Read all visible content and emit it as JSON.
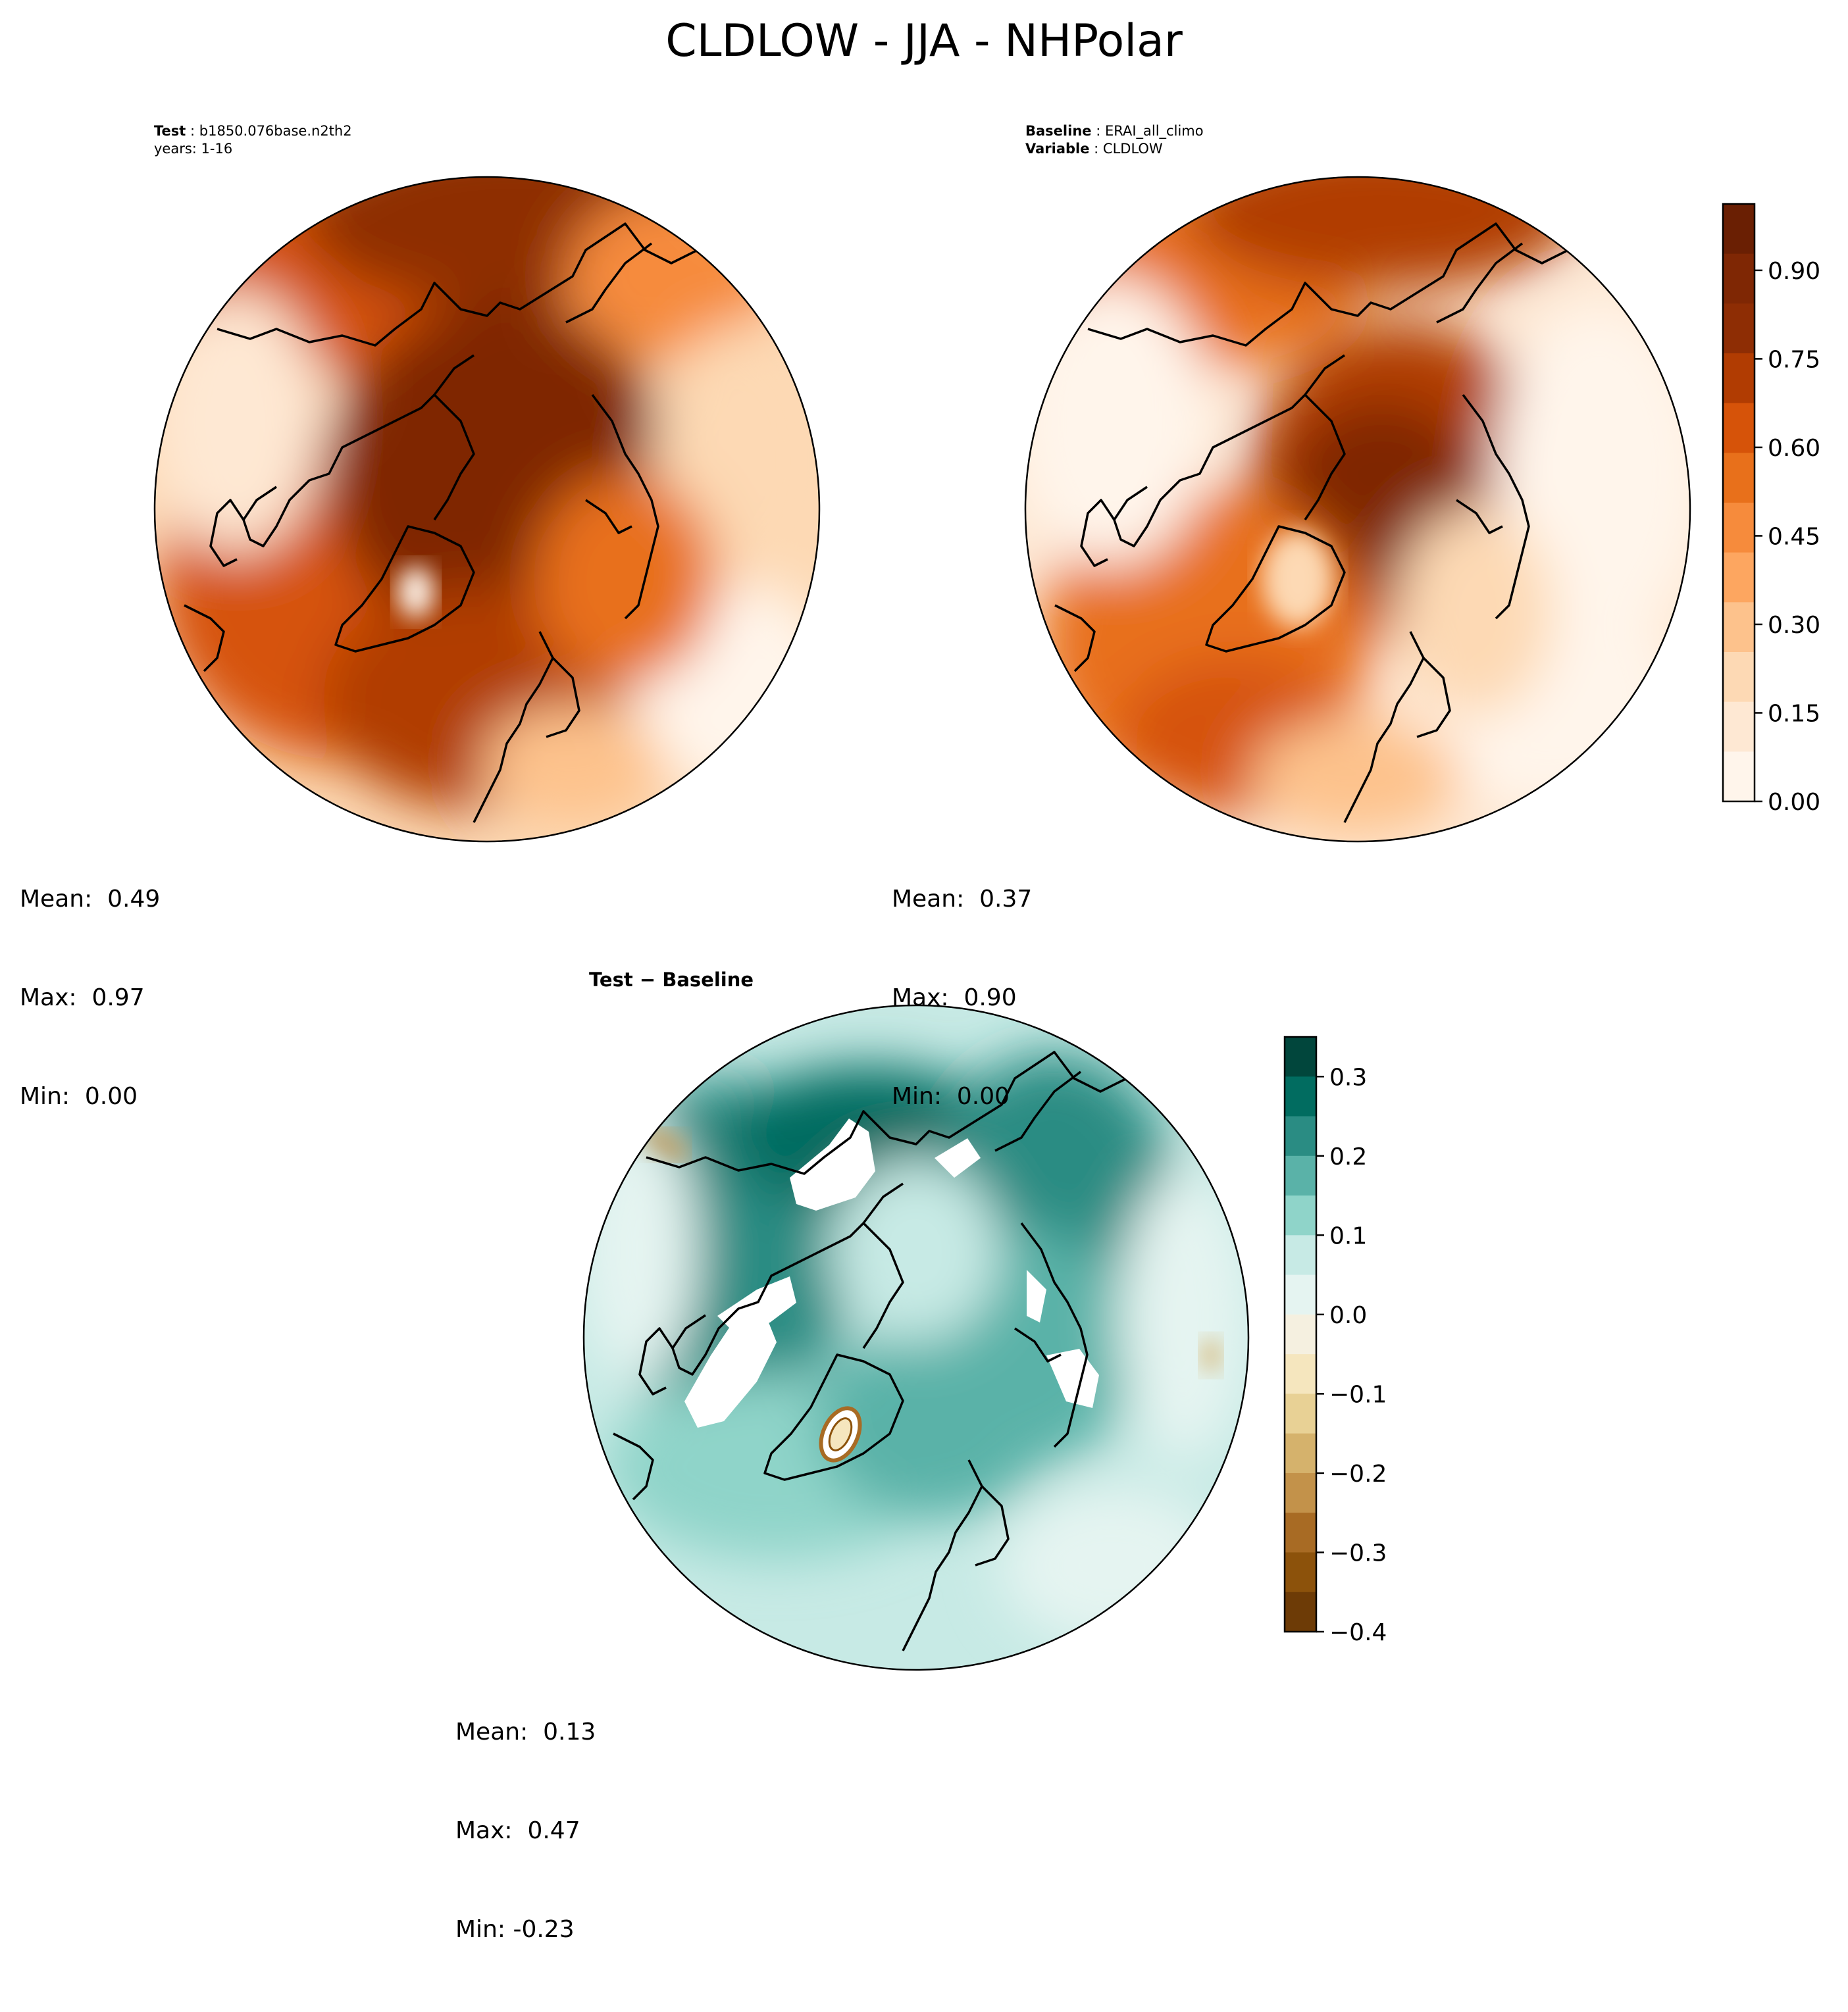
{
  "title": "CLDLOW - JJA - NHPolar",
  "panels": {
    "test": {
      "header_label": "Test",
      "header_value": "b1850.076base.n2th2",
      "header_line2": "years: 1-16",
      "stats": {
        "mean": "Mean:  0.49",
        "max": "Max:  0.97",
        "min": "Min:  0.00"
      }
    },
    "baseline": {
      "header_label": "Baseline",
      "header_value": "ERAI_all_climo",
      "header_label2": "Variable",
      "header_value2": "CLDLOW",
      "stats": {
        "mean": "Mean:  0.37",
        "max": "Max:  0.90",
        "min": "Min:  0.00"
      }
    },
    "diff": {
      "title": "Test − Baseline",
      "stats": {
        "mean": "Mean:  0.13",
        "max": "Max:  0.47",
        "min": "Min: -0.23"
      }
    }
  },
  "colorbars": {
    "main": {
      "ticks": [
        "0.00",
        "0.15",
        "0.30",
        "0.45",
        "0.60",
        "0.75",
        "0.90"
      ],
      "colors": [
        "#fff5eb",
        "#fee8d3",
        "#fdd9b4",
        "#fdc28c",
        "#fda660",
        "#f68b3c",
        "#e8701b",
        "#d65309",
        "#b13c02",
        "#8e2d04",
        "#7f2704",
        "#6a1f03"
      ]
    },
    "diff": {
      "ticks": [
        "0.3",
        "0.2",
        "0.1",
        "0.0",
        "−0.1",
        "−0.2",
        "−0.3",
        "−0.4"
      ],
      "colors": [
        "#01463c",
        "#016c60",
        "#2a8c83",
        "#5ab2a8",
        "#8fd4c9",
        "#c7eae5",
        "#e5f4f1",
        "#f5f0e0",
        "#f5e6be",
        "#e8d195",
        "#d5b26c",
        "#c3924a",
        "#a86b24",
        "#8c520b",
        "#6d3b06"
      ]
    }
  }
}
